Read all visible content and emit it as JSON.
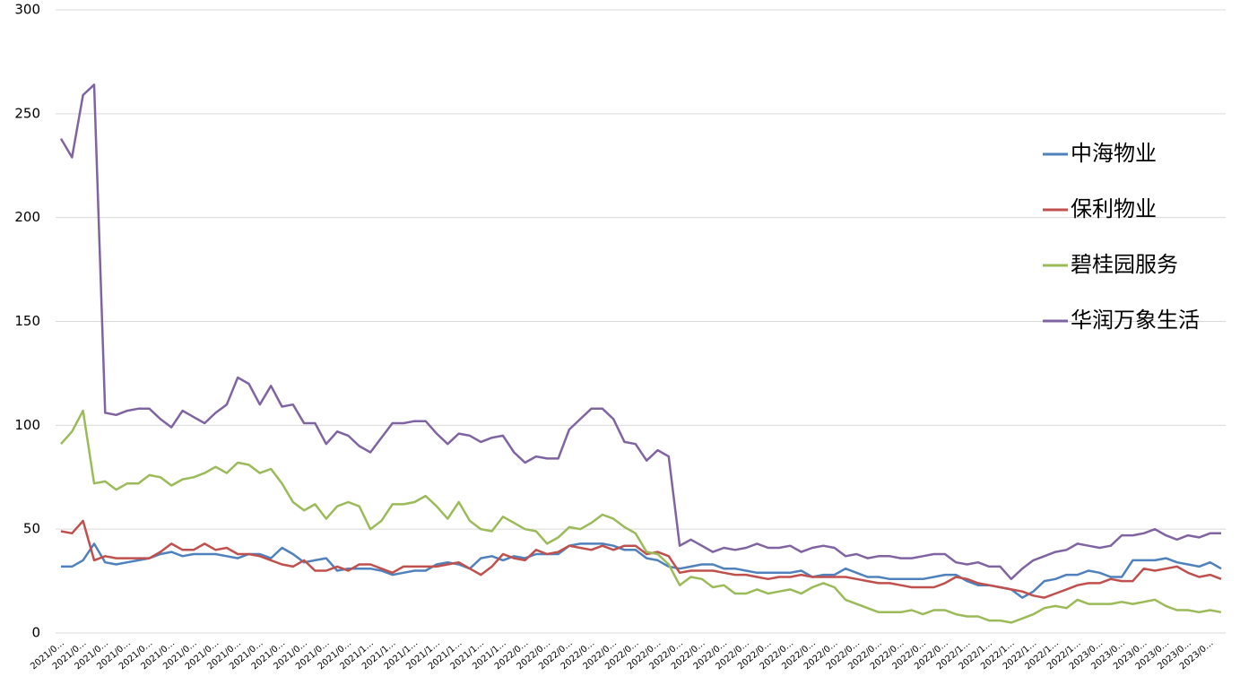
{
  "chart_data": {
    "type": "line",
    "categories": [
      "2021/0…",
      null,
      "2021/0…",
      null,
      "2021/0…",
      null,
      "2021/0…",
      null,
      "2021/0…",
      null,
      "2021/0…",
      null,
      "2021/0…",
      null,
      "2021/0…",
      null,
      "2021/0…",
      null,
      "2021/0…",
      null,
      "2021/0…",
      null,
      "2021/0…",
      null,
      "2021/0…",
      null,
      "2021/0…",
      null,
      "2021/1…",
      null,
      "2021/1…",
      null,
      "2021/1…",
      null,
      "2021/1…",
      null,
      "2021/1…",
      null,
      "2021/1…",
      null,
      "2021/1…",
      null,
      "2022/0…",
      null,
      "2022/0…",
      null,
      "2022/0…",
      null,
      "2022/0…",
      null,
      "2022/0…",
      null,
      "2022/0…",
      null,
      "2022/0…",
      null,
      "2022/0…",
      null,
      "2022/0…",
      null,
      "2022/0…",
      null,
      "2022/0…",
      null,
      "2022/0…",
      null,
      "2022/0…",
      null,
      "2022/0…",
      null,
      "2022/0…",
      null,
      "2022/0…",
      null,
      "2022/0…",
      null,
      "2022/0…",
      null,
      "2022/0…",
      null,
      "2022/0…",
      null,
      "2022/1…",
      null,
      "2022/1…",
      null,
      "2022/1…",
      null,
      "2022/1…",
      null,
      "2022/1…",
      null,
      "2022/1…",
      null,
      "2023/0…",
      null,
      "2023/0…",
      null,
      "2023/0…",
      null,
      "2023/0…",
      null,
      "2023/0…",
      null,
      "2023/0…",
      null
    ],
    "series": [
      {
        "name": "中海物业",
        "color": "#4f81bd",
        "values": [
          32,
          32,
          35,
          43,
          34,
          33,
          34,
          35,
          36,
          38,
          39,
          37,
          38,
          38,
          38,
          37,
          36,
          38,
          38,
          36,
          41,
          38,
          34,
          35,
          36,
          30,
          31,
          31,
          31,
          30,
          28,
          29,
          30,
          30,
          33,
          34,
          33,
          31,
          36,
          37,
          35,
          37,
          36,
          38,
          38,
          38,
          42,
          43,
          43,
          43,
          42,
          40,
          40,
          36,
          35,
          32,
          31,
          32,
          33,
          33,
          31,
          31,
          30,
          29,
          29,
          29,
          29,
          30,
          27,
          28,
          28,
          31,
          29,
          27,
          27,
          26,
          26,
          26,
          26,
          27,
          28,
          28,
          25,
          23,
          23,
          22,
          21,
          17,
          20,
          25,
          26,
          28,
          28,
          30,
          29,
          27,
          27,
          35,
          35,
          35,
          36,
          34,
          33,
          32,
          34,
          31
        ]
      },
      {
        "name": "保利物业",
        "color": "#c0504d",
        "values": [
          49,
          48,
          54,
          35,
          37,
          36,
          36,
          36,
          36,
          39,
          43,
          40,
          40,
          43,
          40,
          41,
          38,
          38,
          37,
          35,
          33,
          32,
          35,
          30,
          30,
          32,
          30,
          33,
          33,
          31,
          29,
          32,
          32,
          32,
          32,
          33,
          34,
          31,
          28,
          32,
          38,
          36,
          35,
          40,
          38,
          39,
          42,
          41,
          40,
          42,
          40,
          42,
          42,
          38,
          39,
          37,
          29,
          30,
          30,
          30,
          29,
          28,
          28,
          27,
          26,
          27,
          27,
          28,
          27,
          27,
          27,
          27,
          26,
          25,
          24,
          24,
          23,
          22,
          22,
          22,
          24,
          27,
          26,
          24,
          23,
          22,
          21,
          20,
          18,
          17,
          19,
          21,
          23,
          24,
          24,
          26,
          25,
          25,
          31,
          30,
          31,
          32,
          29,
          27,
          28,
          26
        ]
      },
      {
        "name": "碧桂园服务",
        "color": "#9bbb59",
        "values": [
          91,
          97,
          107,
          72,
          73,
          69,
          72,
          72,
          76,
          75,
          71,
          74,
          75,
          77,
          80,
          77,
          82,
          81,
          77,
          79,
          72,
          63,
          59,
          62,
          55,
          61,
          63,
          61,
          50,
          54,
          62,
          62,
          63,
          66,
          61,
          55,
          63,
          54,
          50,
          49,
          56,
          53,
          50,
          49,
          43,
          46,
          51,
          50,
          53,
          57,
          55,
          51,
          48,
          39,
          38,
          33,
          23,
          27,
          26,
          22,
          23,
          19,
          19,
          21,
          19,
          20,
          21,
          19,
          22,
          24,
          22,
          16,
          14,
          12,
          10,
          10,
          10,
          11,
          9,
          11,
          11,
          9,
          8,
          8,
          6,
          6,
          5,
          7,
          9,
          12,
          13,
          12,
          16,
          14,
          14,
          14,
          15,
          14,
          15,
          16,
          13,
          11,
          11,
          10,
          11,
          10
        ]
      },
      {
        "name": "华润万象生活",
        "color": "#8064a2",
        "values": [
          238,
          229,
          259,
          264,
          106,
          105,
          107,
          108,
          108,
          103,
          99,
          107,
          104,
          101,
          106,
          110,
          123,
          120,
          110,
          119,
          109,
          110,
          101,
          101,
          91,
          97,
          95,
          90,
          87,
          94,
          101,
          101,
          102,
          102,
          96,
          91,
          96,
          95,
          92,
          94,
          95,
          87,
          82,
          85,
          84,
          84,
          98,
          103,
          108,
          108,
          103,
          92,
          91,
          83,
          88,
          85,
          42,
          45,
          42,
          39,
          41,
          40,
          41,
          43,
          41,
          41,
          42,
          39,
          41,
          42,
          41,
          37,
          38,
          36,
          37,
          37,
          36,
          36,
          37,
          38,
          38,
          34,
          33,
          34,
          32,
          32,
          26,
          31,
          35,
          37,
          39,
          40,
          43,
          42,
          41,
          42,
          47,
          47,
          48,
          50,
          47,
          45,
          47,
          46,
          48,
          48
        ]
      }
    ],
    "ylim": [
      0,
      300
    ],
    "yticks": [
      0,
      50,
      100,
      150,
      200,
      250,
      300
    ],
    "grid": true,
    "legend": "right"
  }
}
